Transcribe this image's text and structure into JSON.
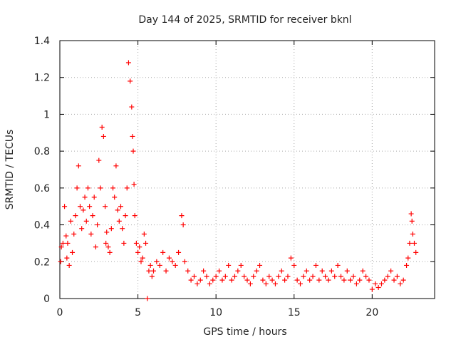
{
  "chart_data": {
    "type": "scatter",
    "title": "Day 144 of 2025, SRMTID for receiver bknl",
    "xlabel": "GPS time / hours",
    "ylabel": "SRMTID / TECUs",
    "xlim": [
      0,
      24
    ],
    "ylim": [
      0,
      1.4
    ],
    "xticks": [
      0,
      5,
      10,
      15,
      20
    ],
    "xtick_labels": [
      "0",
      "5",
      "10",
      "15",
      "20"
    ],
    "yticks": [
      0,
      0.2,
      0.4,
      0.6,
      0.8,
      1.0,
      1.2,
      1.4
    ],
    "ytick_labels": [
      "0",
      "0.2",
      "0.4",
      "0.6",
      "0.8",
      "1",
      "1.2",
      "1.4"
    ],
    "grid": true,
    "marker": "+",
    "color": "#ff0000",
    "series": [
      {
        "name": "SRMTID",
        "x": [
          0.05,
          0.1,
          0.2,
          0.3,
          0.4,
          0.45,
          0.5,
          0.6,
          0.7,
          0.8,
          0.9,
          1.0,
          1.1,
          1.2,
          1.3,
          1.4,
          1.5,
          1.6,
          1.7,
          1.8,
          1.9,
          2.0,
          2.1,
          2.2,
          2.3,
          2.4,
          2.5,
          2.6,
          2.7,
          2.8,
          2.9,
          2.95,
          3.0,
          3.1,
          3.2,
          3.3,
          3.4,
          3.5,
          3.6,
          3.7,
          3.8,
          3.9,
          4.0,
          4.1,
          4.2,
          4.3,
          4.4,
          4.5,
          4.6,
          4.65,
          4.7,
          4.75,
          4.8,
          4.9,
          5.0,
          5.1,
          5.2,
          5.3,
          5.4,
          5.5,
          5.6,
          5.7,
          5.8,
          5.9,
          6.0,
          6.2,
          6.4,
          6.6,
          6.8,
          7.0,
          7.2,
          7.4,
          7.6,
          7.8,
          7.9,
          8.0,
          8.2,
          8.4,
          8.6,
          8.8,
          9.0,
          9.2,
          9.4,
          9.6,
          9.8,
          10.0,
          10.2,
          10.4,
          10.6,
          10.8,
          11.0,
          11.2,
          11.4,
          11.6,
          11.8,
          12.0,
          12.2,
          12.4,
          12.6,
          12.8,
          13.0,
          13.2,
          13.4,
          13.6,
          13.8,
          14.0,
          14.2,
          14.4,
          14.6,
          14.8,
          15.0,
          15.2,
          15.4,
          15.6,
          15.8,
          16.0,
          16.2,
          16.4,
          16.6,
          16.8,
          17.0,
          17.2,
          17.4,
          17.6,
          17.8,
          18.0,
          18.2,
          18.4,
          18.6,
          18.8,
          19.0,
          19.2,
          19.4,
          19.6,
          19.8,
          20.0,
          20.2,
          20.4,
          20.6,
          20.8,
          21.0,
          21.2,
          21.4,
          21.6,
          21.8,
          22.0,
          22.2,
          22.3,
          22.4,
          22.5,
          22.55,
          22.6,
          22.7,
          22.8
        ],
        "y": [
          0.2,
          0.28,
          0.3,
          0.5,
          0.34,
          0.22,
          0.3,
          0.18,
          0.42,
          0.25,
          0.35,
          0.45,
          0.6,
          0.72,
          0.5,
          0.38,
          0.48,
          0.55,
          0.42,
          0.6,
          0.5,
          0.35,
          0.45,
          0.55,
          0.28,
          0.4,
          0.75,
          0.6,
          0.93,
          0.88,
          0.5,
          0.3,
          0.36,
          0.28,
          0.25,
          0.38,
          0.6,
          0.55,
          0.72,
          0.48,
          0.42,
          0.5,
          0.38,
          0.3,
          0.45,
          0.6,
          1.28,
          1.18,
          1.04,
          0.88,
          0.8,
          0.62,
          0.45,
          0.3,
          0.25,
          0.28,
          0.2,
          0.22,
          0.35,
          0.3,
          0.0,
          0.15,
          0.18,
          0.12,
          0.15,
          0.2,
          0.18,
          0.25,
          0.15,
          0.22,
          0.2,
          0.18,
          0.25,
          0.45,
          0.4,
          0.2,
          0.15,
          0.1,
          0.12,
          0.08,
          0.1,
          0.15,
          0.12,
          0.08,
          0.1,
          0.12,
          0.15,
          0.1,
          0.12,
          0.18,
          0.1,
          0.12,
          0.15,
          0.18,
          0.12,
          0.1,
          0.08,
          0.12,
          0.15,
          0.18,
          0.1,
          0.08,
          0.12,
          0.1,
          0.08,
          0.12,
          0.15,
          0.1,
          0.12,
          0.22,
          0.18,
          0.1,
          0.08,
          0.12,
          0.15,
          0.1,
          0.12,
          0.18,
          0.1,
          0.15,
          0.12,
          0.1,
          0.15,
          0.12,
          0.18,
          0.12,
          0.1,
          0.15,
          0.1,
          0.12,
          0.08,
          0.1,
          0.15,
          0.12,
          0.1,
          0.05,
          0.08,
          0.06,
          0.08,
          0.1,
          0.12,
          0.15,
          0.1,
          0.12,
          0.08,
          0.1,
          0.18,
          0.22,
          0.3,
          0.46,
          0.42,
          0.35,
          0.3,
          0.25
        ]
      }
    ]
  }
}
